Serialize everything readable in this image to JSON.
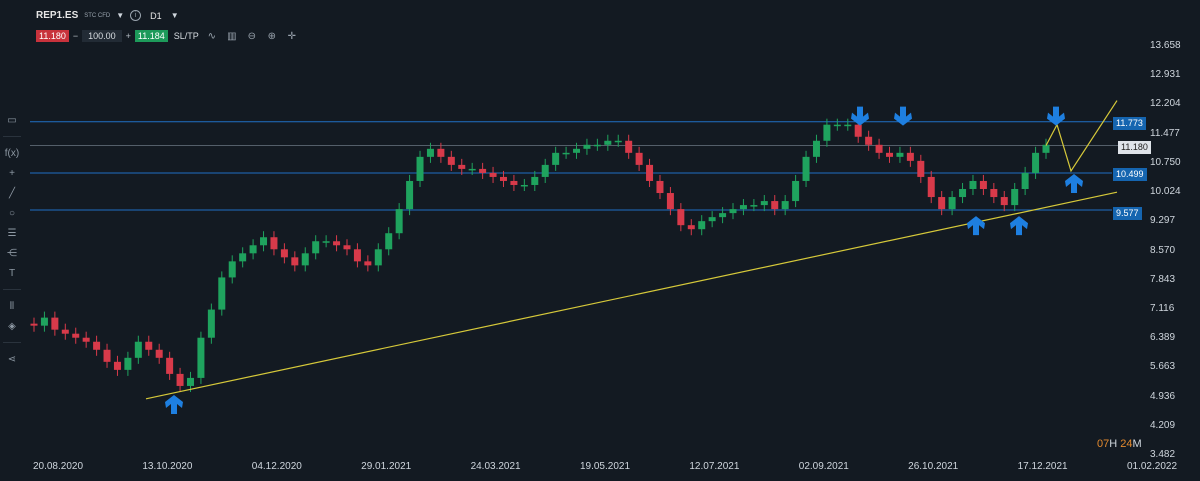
{
  "header": {
    "symbol": "REP1.ES",
    "instrument_type": "STC CFD",
    "timeframe": "D1"
  },
  "trade_bar": {
    "sell_price": "11.180",
    "minus": "−",
    "quantity": "100.00",
    "plus": "+",
    "buy_price": "11.184",
    "sltp_label": "SL/TP"
  },
  "icons": [
    "info-icon",
    "line-chart-icon",
    "candles-icon",
    "zoom-out-icon",
    "zoom-in-icon",
    "crosshair-icon",
    "rectangle-icon",
    "function-icon",
    "plus-icon",
    "pencil-icon",
    "circle-icon",
    "fibonacci-icon",
    "pitchfork-icon",
    "text-icon",
    "ruler-icon",
    "layers-icon",
    "share-icon"
  ],
  "colors": {
    "background": "#131a22",
    "bull": "#1fa35e",
    "bear": "#d83a4a",
    "horizontal_lines": "#1f6fc4",
    "trendline": "#d6c93a",
    "arrows": "#1e7fe0",
    "countdown": "#e48a2e"
  },
  "y_axis": [
    "13.658",
    "12.931",
    "12.204",
    "11.477",
    "10.750",
    "10.024",
    "9.297",
    "8.570",
    "7.843",
    "7.116",
    "6.389",
    "5.663",
    "4.936",
    "4.209",
    "3.482"
  ],
  "x_axis": [
    "20.08.2020",
    "13.10.2020",
    "04.12.2020",
    "29.01.2021",
    "24.03.2021",
    "19.05.2021",
    "12.07.2021",
    "02.09.2021",
    "26.10.2021",
    "17.12.2021",
    "01.02.2022"
  ],
  "price_labels": {
    "level_high": "11.773",
    "current": "11.180",
    "level_mid": "10.499",
    "level_low": "9.577"
  },
  "countdown": {
    "hours": "07",
    "h_unit": "H",
    "minutes": "24",
    "m_unit": "M"
  },
  "chart_data": {
    "type": "line",
    "symbol": "REP1.ES",
    "timeframe": "D1",
    "ylim": [
      3.482,
      13.658
    ],
    "candle_closes": [
      6.7,
      6.9,
      6.6,
      6.5,
      6.4,
      6.3,
      6.1,
      5.8,
      5.6,
      5.9,
      6.3,
      6.1,
      5.9,
      5.5,
      5.2,
      5.4,
      6.4,
      7.1,
      7.9,
      8.3,
      8.5,
      8.7,
      8.9,
      8.6,
      8.4,
      8.2,
      8.5,
      8.8,
      8.8,
      8.7,
      8.6,
      8.3,
      8.2,
      8.6,
      9.0,
      9.6,
      10.3,
      10.9,
      11.1,
      10.9,
      10.7,
      10.6,
      10.6,
      10.5,
      10.4,
      10.3,
      10.2,
      10.2,
      10.4,
      10.7,
      11.0,
      11.0,
      11.1,
      11.2,
      11.2,
      11.3,
      11.3,
      11.0,
      10.7,
      10.3,
      10.0,
      9.6,
      9.2,
      9.1,
      9.3,
      9.4,
      9.5,
      9.6,
      9.7,
      9.7,
      9.8,
      9.6,
      9.8,
      10.3,
      10.9,
      11.3,
      11.7,
      11.7,
      11.7,
      11.4,
      11.2,
      11.0,
      10.9,
      11.0,
      10.8,
      10.4,
      9.9,
      9.6,
      9.9,
      10.1,
      10.3,
      10.1,
      9.9,
      9.7,
      10.1,
      10.5,
      11.0,
      11.2
    ],
    "horizontal_levels": [
      11.773,
      10.499,
      9.577
    ],
    "current_price": 11.18,
    "trendline": {
      "from": 4.88,
      "to": 10.02
    },
    "projection": [
      11.18,
      11.7,
      10.55,
      12.3
    ],
    "arrows_down_at": [
      11.9,
      11.9,
      11.9
    ],
    "arrows_up_at": [
      4.75,
      9.2,
      9.2,
      10.25
    ]
  }
}
